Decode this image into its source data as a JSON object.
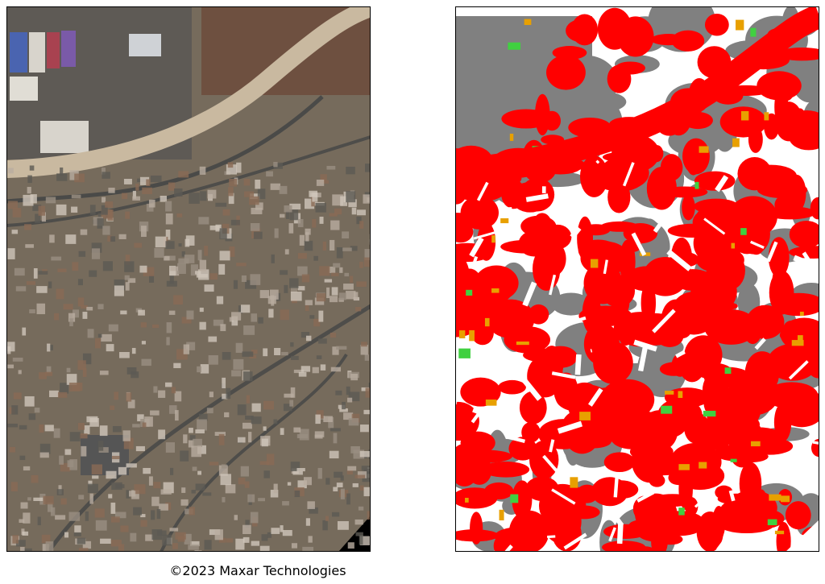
{
  "caption": "©2023 Maxar Technologies"
}
